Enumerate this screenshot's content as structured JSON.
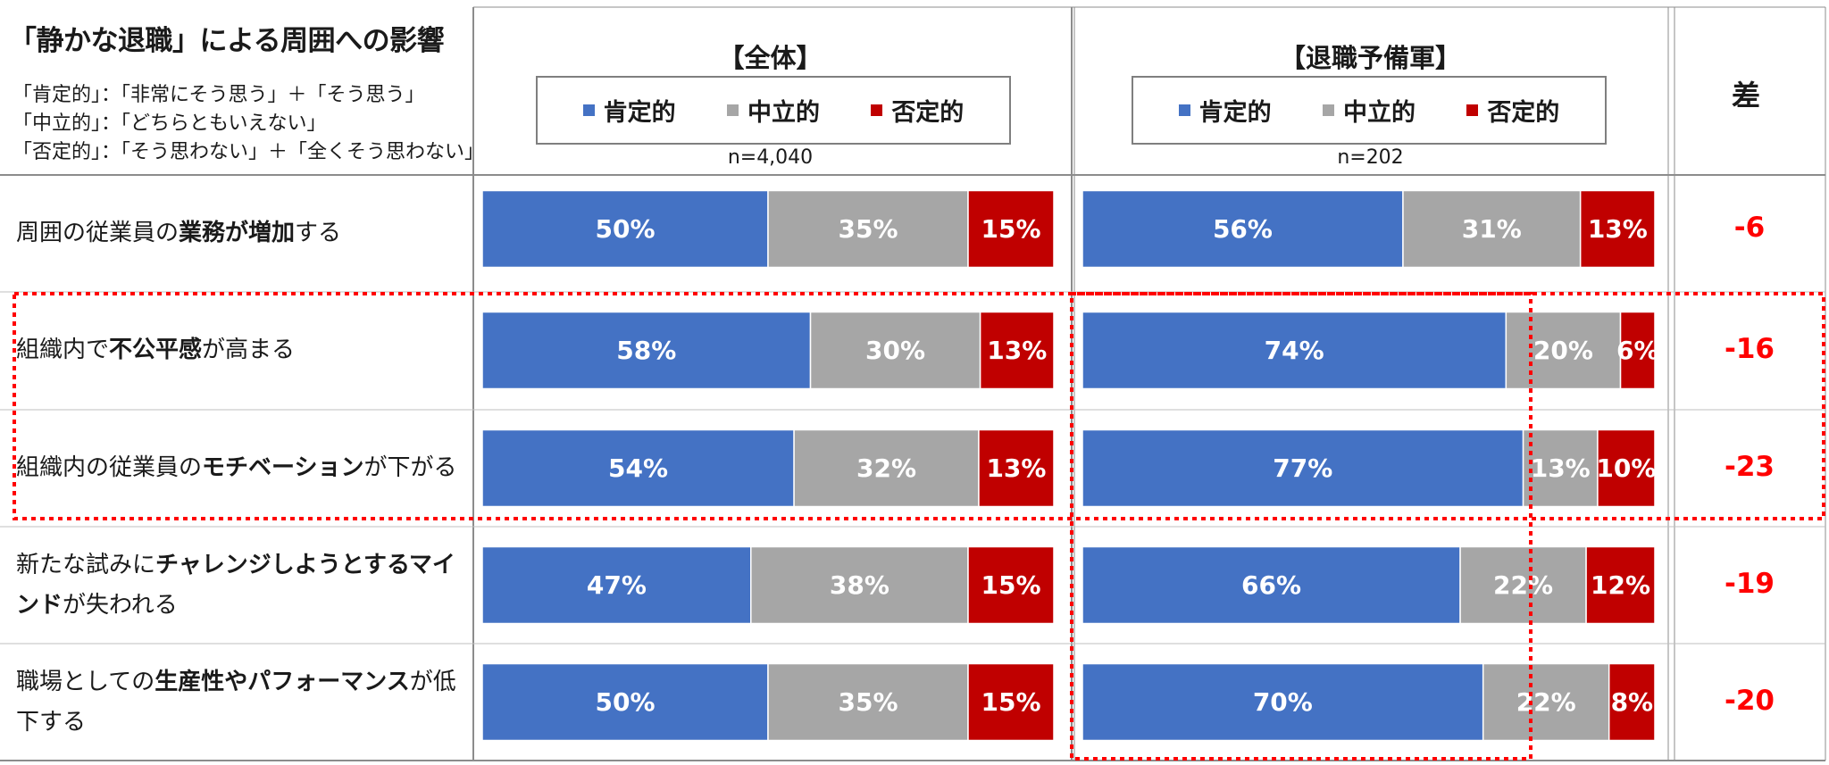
{
  "title": "「静かな退職」による周囲への影響",
  "definitions": [
    "「肯定的」：「非常にそう思う」＋「そう思う」",
    "「中立的」：「どちらともいえない」",
    "「否定的」：「そう思わない」＋「全くそう思わない」"
  ],
  "legend": [
    "肯定的",
    "中立的",
    "否定的"
  ],
  "diff_header": "差",
  "colors": {
    "positive": "#4472c4",
    "neutral": "#a6a6a6",
    "negative": "#c00000",
    "highlight": "#ff0000"
  },
  "chart_data": [
    {
      "type": "bar",
      "stacked": true,
      "orientation": "horizontal",
      "title": "【全体】",
      "n_label": "n=4,040",
      "categories_parts": [
        [
          {
            "t": "周囲の従業員の",
            "b": false
          },
          {
            "t": "業務が増加",
            "b": true
          },
          {
            "t": "する",
            "b": false
          }
        ],
        [
          {
            "t": "組織内で",
            "b": false
          },
          {
            "t": "不公平感",
            "b": true
          },
          {
            "t": "が高まる",
            "b": false
          }
        ],
        [
          {
            "t": "組織内の従業員の",
            "b": false
          },
          {
            "t": "モチベーション",
            "b": true
          },
          {
            "t": "が下がる",
            "b": false
          }
        ],
        [
          {
            "t": "新たな試みに",
            "b": false
          },
          {
            "t": "チャレンジしようとするマインド",
            "b": true
          },
          {
            "t": "が失われる",
            "b": false
          }
        ],
        [
          {
            "t": "職場としての",
            "b": false
          },
          {
            "t": "生産性やパフォーマンス",
            "b": true
          },
          {
            "t": "が低下する",
            "b": false
          }
        ]
      ],
      "series": [
        {
          "name": "肯定的",
          "values": [
            50,
            58,
            54,
            47,
            50
          ]
        },
        {
          "name": "中立的",
          "values": [
            35,
            30,
            32,
            38,
            35
          ]
        },
        {
          "name": "否定的",
          "values": [
            15,
            13,
            13,
            15,
            15
          ]
        }
      ],
      "unit": "%"
    },
    {
      "type": "bar",
      "stacked": true,
      "orientation": "horizontal",
      "title": "【退職予備軍】",
      "n_label": "n=202",
      "series": [
        {
          "name": "肯定的",
          "values": [
            56,
            74,
            77,
            66,
            70
          ]
        },
        {
          "name": "中立的",
          "values": [
            31,
            20,
            13,
            22,
            22
          ]
        },
        {
          "name": "否定的",
          "values": [
            13,
            6,
            10,
            12,
            8
          ]
        }
      ],
      "unit": "%"
    }
  ],
  "differences": [
    "-6",
    "-16",
    "-23",
    "-19",
    "-20"
  ]
}
